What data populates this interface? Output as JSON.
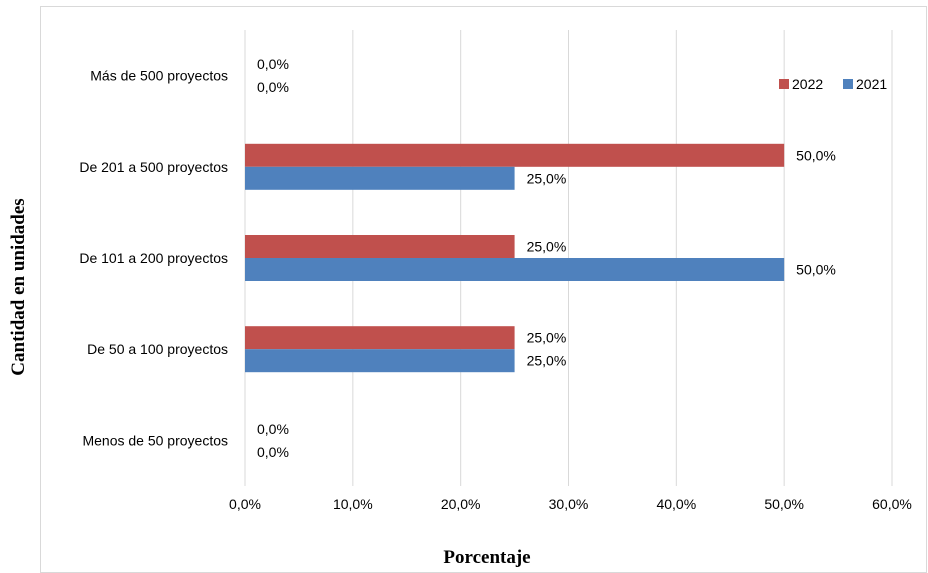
{
  "chart_data": {
    "type": "bar",
    "orientation": "horizontal",
    "xlabel": "Porcentaje",
    "ylabel": "Cantidad en unidades",
    "xlim": [
      0,
      60
    ],
    "x_ticks": [
      "0,0%",
      "10,0%",
      "20,0%",
      "30,0%",
      "40,0%",
      "50,0%",
      "60,0%"
    ],
    "categories": [
      "Más de 500 proyectos",
      "De 201 a 500 proyectos",
      "De 101 a 200 proyectos",
      "De 50 a 100 proyectos",
      "Menos de 50 proyectos"
    ],
    "series": [
      {
        "name": "2022",
        "color": "#c0504d",
        "values": [
          0,
          50,
          25,
          25,
          0
        ],
        "labels": [
          "0,0%",
          "50,0%",
          "25,0%",
          "25,0%",
          "0,0%"
        ]
      },
      {
        "name": "2021",
        "color": "#4f81bd",
        "values": [
          0,
          25,
          50,
          25,
          0
        ],
        "labels": [
          "0,0%",
          "25,0%",
          "50,0%",
          "25,0%",
          "0,0%"
        ]
      }
    ],
    "grid": "vertical",
    "legend_position": "top-right"
  }
}
